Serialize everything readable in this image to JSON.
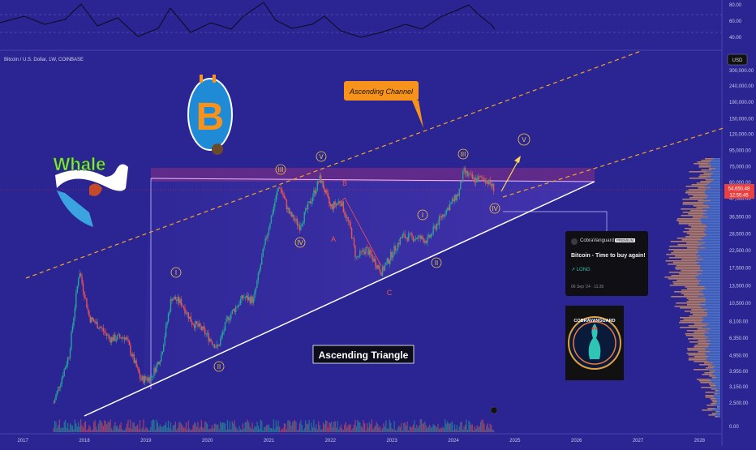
{
  "symbol_line": "Bitcoin / U.S. Dollar, 1W, COINBASE",
  "currency_label": "USD",
  "price_badge": {
    "price": "54,650.48",
    "countdown": "12:55:45"
  },
  "annotations": {
    "channel_label": "Ascending Channel",
    "triangle_label": "Ascending Triangle",
    "waves": [
      "I",
      "II",
      "III",
      "IV",
      "V",
      "A",
      "B",
      "C"
    ]
  },
  "idea_card": {
    "author": "CobraVanguard",
    "badge": "PREMIUM",
    "title": "Bitcoin - Time to buy again!",
    "direction": "↗ LONG",
    "date": "06 Sep '24 · 11:36"
  },
  "logos": {
    "whale": "Whale",
    "cobra": "COBRAVANGUARD"
  },
  "colors": {
    "background": "#2a2593",
    "bull": "#26a69a",
    "bear": "#ef5350",
    "channel": "#f5a623",
    "triangle": "#ffffff"
  },
  "chart_data": {
    "type": "line",
    "title": "Bitcoin / U.S. Dollar, 1W, COINBASE",
    "scale": "log",
    "x": [
      "2017-07",
      "2017-10",
      "2017-12",
      "2018-02",
      "2018-04",
      "2018-06",
      "2018-09",
      "2018-12",
      "2019-02",
      "2019-04",
      "2019-06",
      "2019-08",
      "2019-10",
      "2019-12",
      "2020-03",
      "2020-05",
      "2020-08",
      "2020-10",
      "2020-12",
      "2021-01",
      "2021-03",
      "2021-05",
      "2021-07",
      "2021-09",
      "2021-11",
      "2022-01",
      "2022-03",
      "2022-05",
      "2022-06",
      "2022-08",
      "2022-11",
      "2023-01",
      "2023-03",
      "2023-06",
      "2023-08",
      "2023-10",
      "2023-12",
      "2024-02",
      "2024-03",
      "2024-05",
      "2024-07",
      "2024-09"
    ],
    "series": [
      {
        "values": [
          2500,
          5000,
          17000,
          8500,
          7500,
          6300,
          6500,
          3500,
          3600,
          5000,
          11500,
          10500,
          8000,
          7200,
          5500,
          8500,
          11500,
          11000,
          23000,
          32000,
          58000,
          38000,
          32000,
          45000,
          64000,
          42000,
          46000,
          30000,
          20000,
          23000,
          16500,
          21500,
          27500,
          27000,
          26000,
          34000,
          42000,
          51000,
          70000,
          62000,
          64000,
          54650
        ]
      }
    ],
    "ylim": [
      2000,
      420000
    ],
    "xticks": [
      "2017",
      "2018",
      "2019",
      "2020",
      "2021",
      "2022",
      "2023",
      "2024",
      "2025",
      "2026",
      "2027",
      "2028"
    ],
    "yticks": [
      "300,000.00",
      "240,000.00",
      "190,000.00",
      "150,000.00",
      "120,000.00",
      "95,000.00",
      "75,000.00",
      "60,000.00",
      "47,500.00",
      "36,500.00",
      "28,500.00",
      "22,500.00",
      "17,500.00",
      "13,500.00",
      "10,500.00",
      "8,100.00",
      "6,350.00",
      "4,950.00",
      "3,950.00",
      "3,150.00",
      "2,500.00"
    ],
    "rsi_ticks": [
      "80.00",
      "60.00",
      "40.00"
    ],
    "volume_tick": "0.00"
  }
}
